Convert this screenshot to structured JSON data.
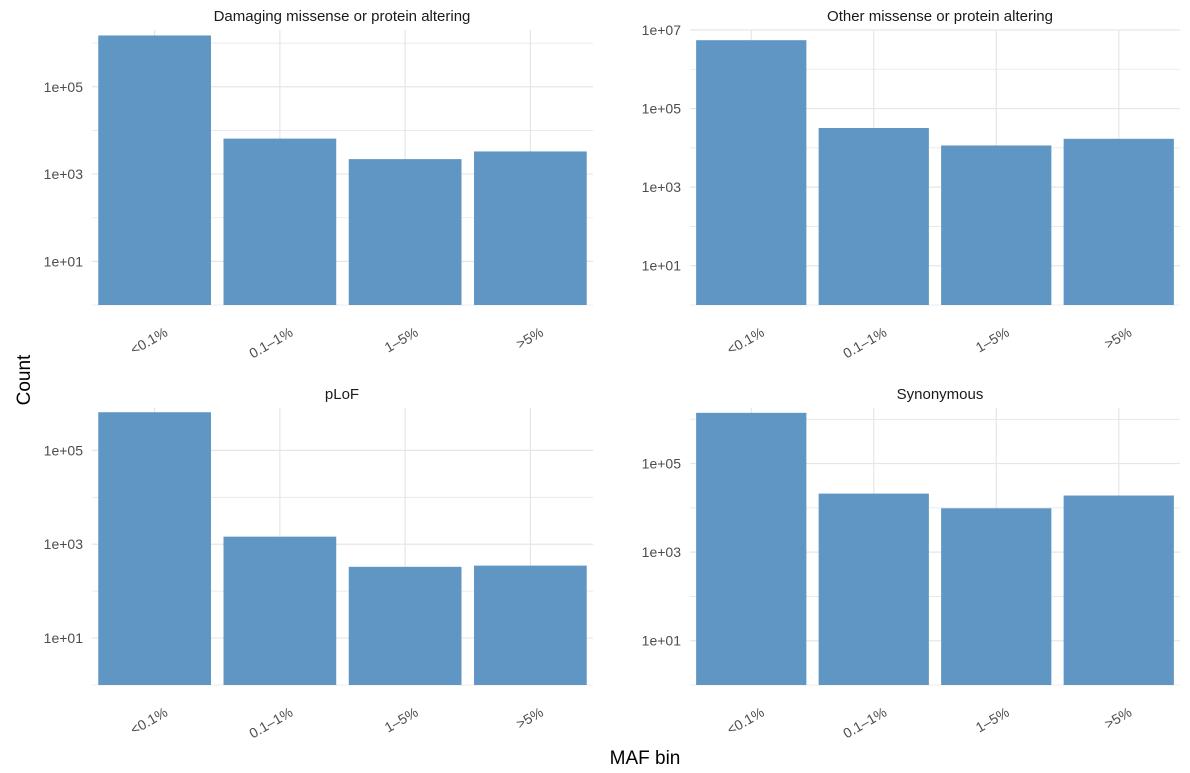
{
  "figure": {
    "xlabel": "MAF bin",
    "ylabel": "Count"
  },
  "colors": {
    "bar": "#6096c3",
    "grid": "#e6e6e6",
    "tick_text": "#4d4d4d"
  },
  "chart_data": [
    {
      "type": "bar",
      "title": "Damaging missense or protein altering",
      "categories": [
        "<0.1%",
        "0.1–1%",
        "1–5%",
        ">5%"
      ],
      "values": [
        1500000,
        6500,
        2200,
        3300
      ],
      "y_scale": "log10",
      "ylim": [
        1,
        2000000
      ],
      "yticks": [
        10,
        1000,
        100000
      ],
      "ytick_labels": [
        "1e+01",
        "1e+03",
        "1e+05"
      ],
      "grid": true
    },
    {
      "type": "bar",
      "title": "Other missense or protein altering",
      "categories": [
        "<0.1%",
        "0.1–1%",
        "1–5%",
        ">5%"
      ],
      "values": [
        5500000,
        32000,
        11500,
        17000
      ],
      "y_scale": "log10",
      "ylim": [
        1,
        10000000
      ],
      "yticks": [
        10,
        1000,
        100000,
        10000000
      ],
      "ytick_labels": [
        "1e+01",
        "1e+03",
        "1e+05",
        "1e+07"
      ],
      "grid": true
    },
    {
      "type": "bar",
      "title": "pLoF",
      "categories": [
        "<0.1%",
        "0.1–1%",
        "1–5%",
        ">5%"
      ],
      "values": [
        650000,
        1450,
        330,
        350
      ],
      "y_scale": "log10",
      "ylim": [
        1,
        800000
      ],
      "yticks": [
        10,
        1000,
        100000
      ],
      "ytick_labels": [
        "1e+01",
        "1e+03",
        "1e+05"
      ],
      "grid": true
    },
    {
      "type": "bar",
      "title": "Synonymous",
      "categories": [
        "<0.1%",
        "0.1–1%",
        "1–5%",
        ">5%"
      ],
      "values": [
        1400000,
        21000,
        9800,
        19000
      ],
      "y_scale": "log10",
      "ylim": [
        1,
        1800000
      ],
      "yticks": [
        10,
        1000,
        100000
      ],
      "ytick_labels": [
        "1e+01",
        "1e+03",
        "1e+05"
      ],
      "grid": true
    }
  ]
}
